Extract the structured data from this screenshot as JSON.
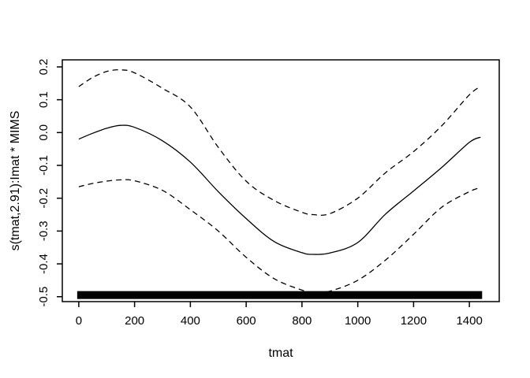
{
  "figure": {
    "background": "#ffffff",
    "foreground": "#000000"
  },
  "chart_data": {
    "type": "line",
    "title": "",
    "xlabel": "tmat",
    "ylabel": "s(tmat,2.91):Imat * MIMS",
    "xlim": [
      -59,
      1507
    ],
    "ylim": [
      -0.515,
      0.2215
    ],
    "grid": false,
    "legend_position": "none",
    "xticks": [
      0,
      200,
      400,
      600,
      800,
      1000,
      1200,
      1400
    ],
    "xtick_labels": [
      "0",
      "200",
      "400",
      "600",
      "800",
      "1000",
      "1200",
      "1400"
    ],
    "yticks": [
      -0.5,
      -0.4,
      -0.3,
      -0.2,
      -0.1,
      0.0,
      0.1,
      0.2
    ],
    "ytick_labels": [
      "-0.5",
      "-0.4",
      "-0.3",
      "-0.2",
      "-0.1",
      "0.0",
      "0.1",
      "0.2"
    ],
    "x": [
      0,
      50,
      100,
      150,
      200,
      300,
      400,
      500,
      600,
      700,
      800,
      840,
      900,
      1000,
      1100,
      1200,
      1300,
      1400,
      1440
    ],
    "series": [
      {
        "name": "fit",
        "line_type": "solid",
        "values": [
          -0.02,
          -0.002,
          0.013,
          0.022,
          0.016,
          -0.025,
          -0.09,
          -0.18,
          -0.262,
          -0.332,
          -0.366,
          -0.371,
          -0.367,
          -0.335,
          -0.248,
          -0.178,
          -0.107,
          -0.03,
          -0.014
        ]
      },
      {
        "name": "upper-ci",
        "line_type": "dashed",
        "values": [
          0.14,
          0.168,
          0.186,
          0.191,
          0.182,
          0.135,
          0.078,
          -0.045,
          -0.148,
          -0.207,
          -0.243,
          -0.25,
          -0.247,
          -0.2,
          -0.122,
          -0.058,
          0.02,
          0.115,
          0.14
        ]
      },
      {
        "name": "lower-ci",
        "line_type": "dashed",
        "values": [
          -0.165,
          -0.155,
          -0.148,
          -0.144,
          -0.147,
          -0.176,
          -0.235,
          -0.3,
          -0.38,
          -0.445,
          -0.48,
          -0.487,
          -0.483,
          -0.45,
          -0.388,
          -0.31,
          -0.228,
          -0.18,
          -0.168
        ]
      }
    ],
    "rug": {
      "from": 0,
      "to": 1440,
      "value": -0.495,
      "thickness_px": 10
    }
  }
}
